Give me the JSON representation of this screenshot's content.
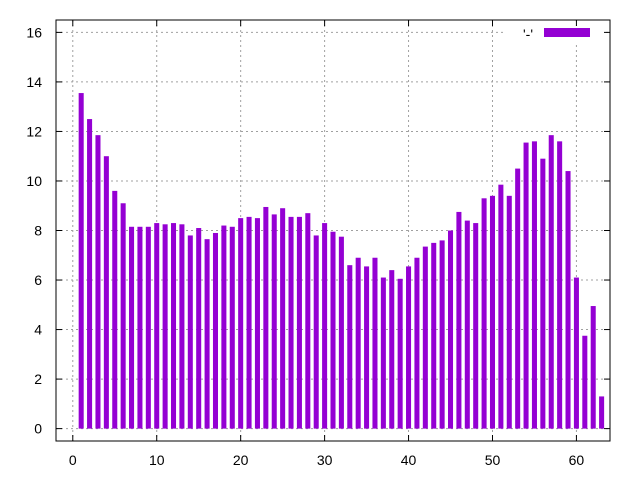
{
  "chart_data": {
    "type": "bar",
    "title": "",
    "xlabel": "",
    "ylabel": "",
    "xlim": [
      -2,
      64
    ],
    "ylim": [
      -0.5,
      16.5
    ],
    "xticks": [
      0,
      10,
      20,
      30,
      40,
      50,
      60
    ],
    "yticks": [
      0,
      2,
      4,
      6,
      8,
      10,
      12,
      14,
      16
    ],
    "grid": true,
    "legend_position": "top-right",
    "series": [
      {
        "name": "'-'",
        "color": "#9400d3",
        "x": [
          1,
          2,
          3,
          4,
          5,
          6,
          7,
          8,
          9,
          10,
          11,
          12,
          13,
          14,
          15,
          16,
          17,
          18,
          19,
          20,
          21,
          22,
          23,
          24,
          25,
          26,
          27,
          28,
          29,
          30,
          31,
          32,
          33,
          34,
          35,
          36,
          37,
          38,
          39,
          40,
          41,
          42,
          43,
          44,
          45,
          46,
          47,
          48,
          49,
          50,
          51,
          52,
          53,
          54,
          55,
          56,
          57,
          58,
          59,
          60,
          61,
          62,
          63
        ],
        "values": [
          13.55,
          12.5,
          11.85,
          11.0,
          9.6,
          9.1,
          8.15,
          8.15,
          8.15,
          8.3,
          8.25,
          8.3,
          8.25,
          7.8,
          8.1,
          7.65,
          7.9,
          8.2,
          8.15,
          8.5,
          8.55,
          8.5,
          8.95,
          8.65,
          8.9,
          8.55,
          8.55,
          8.7,
          7.8,
          8.3,
          7.95,
          7.75,
          6.6,
          6.9,
          6.55,
          6.9,
          6.1,
          6.4,
          6.05,
          6.55,
          6.9,
          7.35,
          7.5,
          7.6,
          8.0,
          8.75,
          8.4,
          8.3,
          9.3,
          9.4,
          9.85,
          9.4,
          10.5,
          11.55,
          11.6,
          10.9,
          11.85,
          11.6,
          10.4,
          6.1,
          3.75,
          4.95,
          1.3
        ]
      }
    ]
  }
}
